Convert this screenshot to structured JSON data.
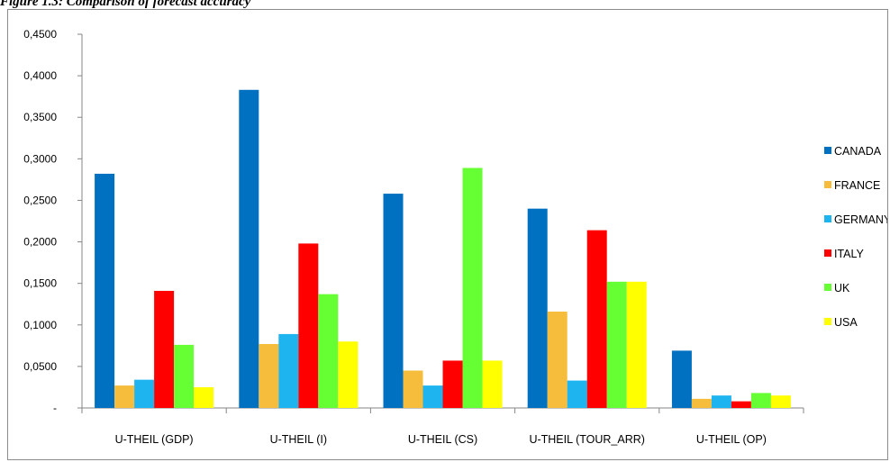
{
  "caption": "Figure 1.3: Comparison of forecast accuracy",
  "chart_data": {
    "type": "bar",
    "title": "",
    "xlabel": "",
    "ylabel": "",
    "ylim": [
      0,
      0.45
    ],
    "yticks": [
      {
        "value": 0,
        "label": "-"
      },
      {
        "value": 0.05,
        "label": "0,0500"
      },
      {
        "value": 0.1,
        "label": "0,1000"
      },
      {
        "value": 0.15,
        "label": "0,1500"
      },
      {
        "value": 0.2,
        "label": "0,2000"
      },
      {
        "value": 0.25,
        "label": "0,2500"
      },
      {
        "value": 0.3,
        "label": "0,3000"
      },
      {
        "value": 0.35,
        "label": "0,3500"
      },
      {
        "value": 0.4,
        "label": "0,4000"
      },
      {
        "value": 0.45,
        "label": "0,4500"
      }
    ],
    "categories": [
      "U-THEIL (GDP)",
      "U-THEIL (I)",
      "U-THEIL (CS)",
      "U-THEIL (TOUR_ARR)",
      "U-THEIL (OP)"
    ],
    "series": [
      {
        "name": "CANADA",
        "color": "#0070c0",
        "values": [
          0.282,
          0.383,
          0.258,
          0.24,
          0.069
        ]
      },
      {
        "name": "FRANCE",
        "color": "#f6bc3b",
        "values": [
          0.027,
          0.077,
          0.045,
          0.116,
          0.011
        ]
      },
      {
        "name": "GERMANY",
        "color": "#1eb4ef",
        "values": [
          0.034,
          0.089,
          0.027,
          0.033,
          0.015
        ]
      },
      {
        "name": "ITALY",
        "color": "#ff0000",
        "values": [
          0.141,
          0.198,
          0.057,
          0.214,
          0.008
        ]
      },
      {
        "name": "UK",
        "color": "#66ff33",
        "values": [
          0.076,
          0.137,
          0.289,
          0.152,
          0.018
        ]
      },
      {
        "name": "USA",
        "color": "#ffff00",
        "values": [
          0.025,
          0.08,
          0.057,
          0.152,
          0.015
        ]
      }
    ],
    "grid": false,
    "legend": "right"
  }
}
